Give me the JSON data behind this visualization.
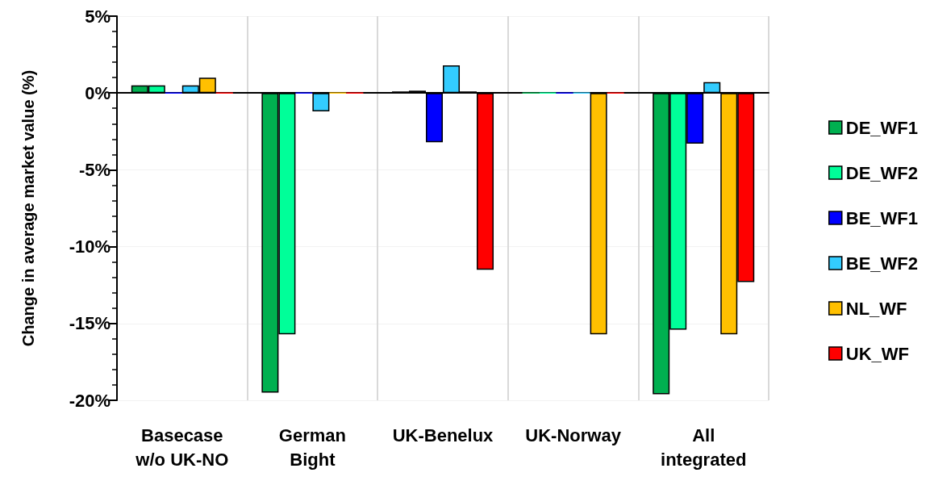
{
  "chart_data": {
    "type": "bar",
    "ylabel": "Change in average market value (%)",
    "categories": [
      "Basecase\nw/o UK-NO",
      "German\nBight",
      "UK-Benelux",
      "UK-Norway",
      "All\nintegrated"
    ],
    "series": [
      {
        "name": "DE_WF1",
        "color": "#00b050",
        "values": [
          0.5,
          -19.5,
          0.1,
          0,
          -19.6
        ]
      },
      {
        "name": "DE_WF2",
        "color": "#00ff99",
        "values": [
          0.5,
          -15.7,
          0.15,
          0,
          -15.4
        ]
      },
      {
        "name": "BE_WF1",
        "color": "#0000ff",
        "values": [
          0,
          0,
          -3.2,
          0,
          -3.3
        ]
      },
      {
        "name": "BE_WF2",
        "color": "#33ccff",
        "values": [
          0.5,
          -1.2,
          1.8,
          0,
          0.7
        ]
      },
      {
        "name": "NL_WF",
        "color": "#ffc000",
        "values": [
          1.0,
          0,
          0.1,
          -15.7,
          -15.7
        ]
      },
      {
        "name": "UK_WF",
        "color": "#ff0000",
        "values": [
          0,
          0,
          -11.5,
          0,
          -12.3
        ]
      }
    ],
    "ylim": [
      -20,
      5
    ],
    "yticks": [
      {
        "value": -20,
        "label": "-20%"
      },
      {
        "value": -15,
        "label": "-15%"
      },
      {
        "value": -10,
        "label": "-10%"
      },
      {
        "value": -5,
        "label": "-5%"
      },
      {
        "value": 0,
        "label": "0%"
      },
      {
        "value": 5,
        "label": "5%"
      }
    ],
    "grid": true,
    "legend": "right"
  }
}
